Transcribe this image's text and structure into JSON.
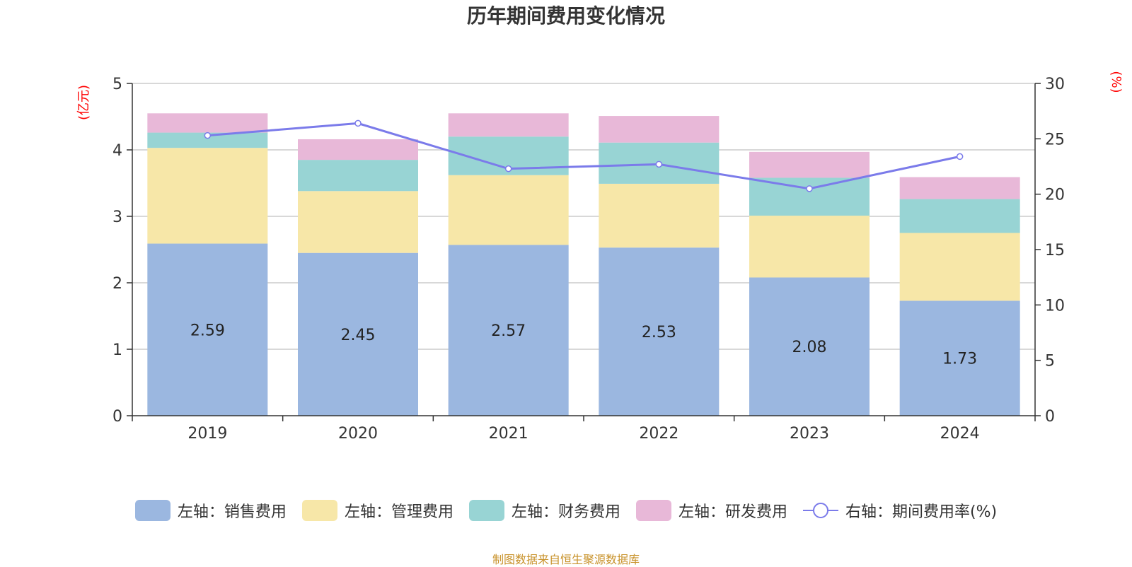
{
  "chart_data": {
    "type": "bar",
    "title": "历年期间费用变化情况",
    "left_axis_unit": "(亿元)",
    "right_axis_unit": "(%)",
    "categories": [
      "2019",
      "2020",
      "2021",
      "2022",
      "2023",
      "2024"
    ],
    "ylim_left": [
      0,
      5
    ],
    "yticks_left": [
      "0",
      "1",
      "2",
      "3",
      "4",
      "5"
    ],
    "ylim_right": [
      0,
      30
    ],
    "yticks_right": [
      "0",
      "5",
      "10",
      "15",
      "20",
      "25",
      "30"
    ],
    "series": [
      {
        "name": "左轴：销售费用",
        "axis": "left",
        "kind": "stacked-bar",
        "color": "#9bb7e0",
        "values": [
          2.59,
          2.45,
          2.57,
          2.53,
          2.08,
          1.73
        ],
        "labels": [
          "2.59",
          "2.45",
          "2.57",
          "2.53",
          "2.08",
          "1.73"
        ]
      },
      {
        "name": "左轴：管理费用",
        "axis": "left",
        "kind": "stacked-bar",
        "color": "#f7e7a8",
        "values": [
          1.44,
          0.93,
          1.05,
          0.96,
          0.93,
          1.02
        ]
      },
      {
        "name": "左轴：财务费用",
        "axis": "left",
        "kind": "stacked-bar",
        "color": "#98d4d4",
        "values": [
          0.23,
          0.47,
          0.58,
          0.62,
          0.57,
          0.51
        ]
      },
      {
        "name": "左轴：研发费用",
        "axis": "left",
        "kind": "stacked-bar",
        "color": "#e8b8d8",
        "values": [
          0.29,
          0.31,
          0.35,
          0.4,
          0.39,
          0.33
        ]
      },
      {
        "name": "右轴：期间费用率(%)",
        "axis": "right",
        "kind": "line",
        "color": "#7b7bea",
        "values": [
          25.3,
          26.4,
          22.3,
          22.7,
          20.5,
          23.4
        ]
      }
    ],
    "grid": true,
    "legend_position": "bottom",
    "source_note": "制图数据来自恒生聚源数据库"
  }
}
